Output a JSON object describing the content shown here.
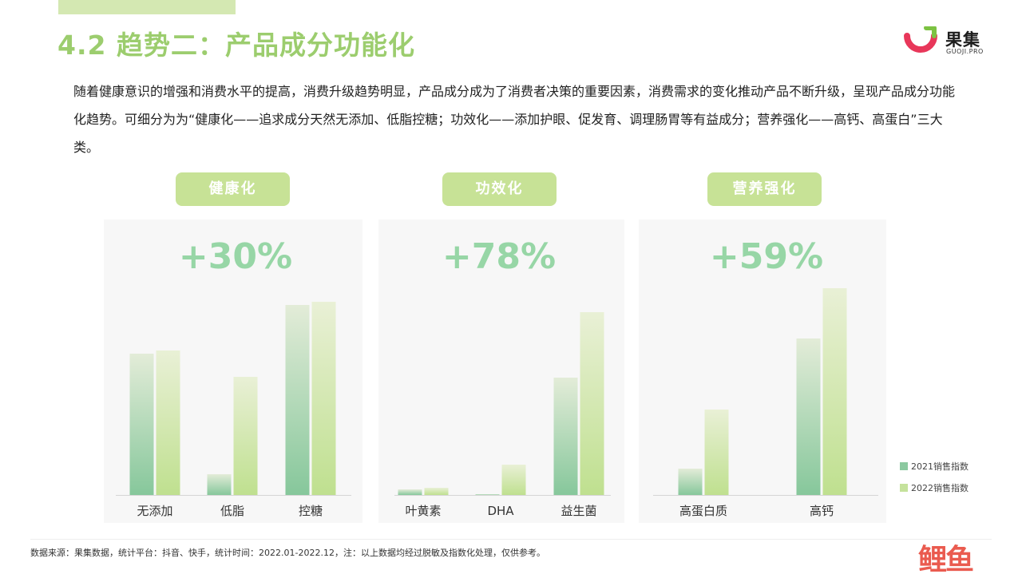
{
  "header": {
    "title": "4.2 趋势二：产品成分功能化",
    "logo_name": "果集",
    "logo_sub": "GUOJI.PRO"
  },
  "intro": "随着健康意识的增强和消费水平的提高，消费升级趋势明显，产品成分成为了消费者决策的重要因素，消费需求的变化推动产品不断升级，呈现产品成分功能化趋势。可细分为为“健康化——追求成分天然无添加、低脂控糖；功效化——添加护眼、促发育、调理肠胃等有益成分；营养强化——高钙、高蛋白”三大类。",
  "groups": [
    {
      "label": "健康化",
      "growth": "+30%"
    },
    {
      "label": "功效化",
      "growth": "+78%"
    },
    {
      "label": "营养强化",
      "growth": "+59%"
    }
  ],
  "legend": [
    "2021销售指数",
    "2022销售指数"
  ],
  "footnote": "数据来源：果集数据，统计平台：抖音、快手，统计时间：2022.01-2022.12，注：以上数据均经过脱敏及指数化处理，仅供参考。",
  "corner_brand": "鲤鱼",
  "colors": {
    "accent": "#9ccd6e",
    "series_2021": "#8cc9a0",
    "series_2022": "#c5e29c",
    "growth_text": "#97d6a6"
  },
  "chart_data": [
    {
      "type": "bar",
      "title": "健康化",
      "categories": [
        "无添加",
        "低脂",
        "控糖"
      ],
      "series": [
        {
          "name": "2021销售指数",
          "values": [
            177,
            26,
            238
          ]
        },
        {
          "name": "2022销售指数",
          "values": [
            181,
            148,
            242
          ]
        }
      ]
    },
    {
      "type": "bar",
      "title": "功效化",
      "categories": [
        "叶黄素",
        "DHA",
        "益生菌"
      ],
      "series": [
        {
          "name": "2021销售指数",
          "values": [
            7,
            1,
            147
          ]
        },
        {
          "name": "2022销售指数",
          "values": [
            9,
            38,
            229
          ]
        }
      ]
    },
    {
      "type": "bar",
      "title": "营养强化",
      "categories": [
        "高蛋白质",
        "高钙"
      ],
      "series": [
        {
          "name": "2021销售指数",
          "values": [
            33,
            196
          ]
        },
        {
          "name": "2022销售指数",
          "values": [
            107,
            259
          ]
        }
      ]
    }
  ]
}
